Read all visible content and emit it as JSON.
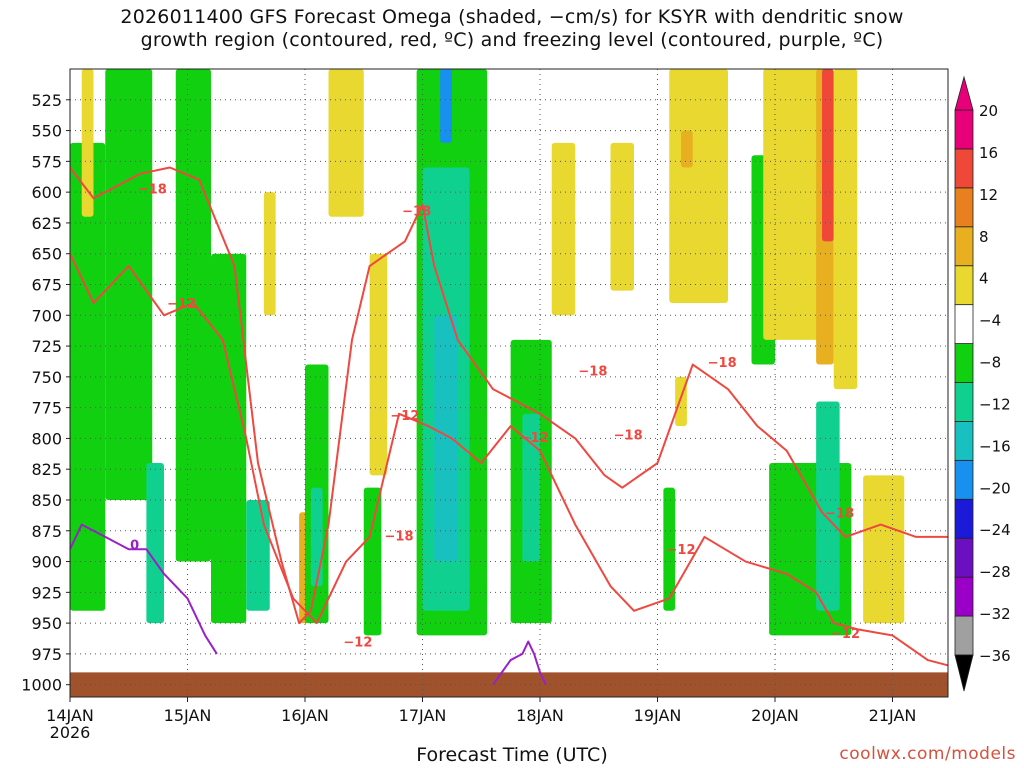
{
  "chart_data": {
    "type": "heatmap",
    "title_lines": [
      "2026011400 GFS Forecast Omega (shaded, −cm/s) for KSYR with dendritic snow",
      "growth region (contoured, red, ºC) and freezing level (contoured, purple, ºC)"
    ],
    "xlabel": "Forecast Time (UTC)",
    "x_ticks": [
      {
        "label": "14JAN",
        "sub": "2026",
        "day": 0
      },
      {
        "label": "15JAN",
        "day": 1
      },
      {
        "label": "16JAN",
        "day": 2
      },
      {
        "label": "17JAN",
        "day": 3
      },
      {
        "label": "18JAN",
        "day": 4
      },
      {
        "label": "19JAN",
        "day": 5
      },
      {
        "label": "20JAN",
        "day": 6
      },
      {
        "label": "21JAN",
        "day": 7
      }
    ],
    "xlim_days": [
      0,
      7.5
    ],
    "y_ticks": [
      525,
      550,
      575,
      600,
      625,
      650,
      675,
      700,
      725,
      750,
      775,
      800,
      825,
      850,
      875,
      900,
      925,
      950,
      975,
      1000
    ],
    "ylim_hpa": [
      500,
      1010
    ],
    "grid": true,
    "colorbar": {
      "levels": [
        -36,
        -32,
        -28,
        -24,
        -20,
        -16,
        -12,
        -8,
        -4,
        4,
        8,
        12,
        16,
        20
      ],
      "labels": [
        "20",
        "16",
        "12",
        "8",
        "4",
        "−4",
        "−8",
        "−12",
        "−16",
        "−20",
        "−24",
        "−28",
        "−32",
        "−36"
      ],
      "colors": [
        "#a0a0a0",
        "#9a00c8",
        "#6a10c0",
        "#1a1ad8",
        "#1890f0",
        "#18c0c0",
        "#10d090",
        "#10d010",
        "#ffffff",
        "#e8d830",
        "#e8b020",
        "#e88020",
        "#f04838",
        "#e8007a"
      ]
    },
    "omega_cells": [
      {
        "t0": 0.0,
        "t1": 0.25,
        "p0": 820,
        "p1": 930,
        "color": "#10d090"
      },
      {
        "t0": 0.0,
        "t1": 0.3,
        "p0": 560,
        "p1": 940,
        "color": "#10d010"
      },
      {
        "t0": 0.1,
        "t1": 0.2,
        "p0": 500,
        "p1": 620,
        "color": "#e8d830"
      },
      {
        "t0": 0.4,
        "t1": 0.6,
        "p0": 500,
        "p1": 600,
        "color": "#10d090"
      },
      {
        "t0": 0.45,
        "t1": 0.55,
        "p0": 510,
        "p1": 570,
        "color": "#1890f0"
      },
      {
        "t0": 0.3,
        "t1": 0.7,
        "p0": 500,
        "p1": 850,
        "color": "#10d010"
      },
      {
        "t0": 0.65,
        "t1": 0.8,
        "p0": 820,
        "p1": 950,
        "color": "#10d090"
      },
      {
        "t0": 0.9,
        "t1": 1.2,
        "p0": 500,
        "p1": 900,
        "color": "#10d010"
      },
      {
        "t0": 1.2,
        "t1": 1.5,
        "p0": 650,
        "p1": 950,
        "color": "#10d010"
      },
      {
        "t0": 1.5,
        "t1": 1.7,
        "p0": 850,
        "p1": 940,
        "color": "#10d090"
      },
      {
        "t0": 1.65,
        "t1": 1.75,
        "p0": 600,
        "p1": 700,
        "color": "#e8d830"
      },
      {
        "t0": 1.95,
        "t1": 2.05,
        "p0": 860,
        "p1": 950,
        "color": "#e8b020"
      },
      {
        "t0": 2.0,
        "t1": 2.2,
        "p0": 740,
        "p1": 950,
        "color": "#10d010"
      },
      {
        "t0": 2.05,
        "t1": 2.15,
        "p0": 840,
        "p1": 920,
        "color": "#10d090"
      },
      {
        "t0": 2.2,
        "t1": 2.5,
        "p0": 500,
        "p1": 620,
        "color": "#e8d830"
      },
      {
        "t0": 2.55,
        "t1": 2.7,
        "p0": 650,
        "p1": 830,
        "color": "#e8d830"
      },
      {
        "t0": 2.5,
        "t1": 2.65,
        "p0": 840,
        "p1": 960,
        "color": "#10d010"
      },
      {
        "t0": 2.95,
        "t1": 3.55,
        "p0": 500,
        "p1": 960,
        "color": "#10d010"
      },
      {
        "t0": 3.0,
        "t1": 3.4,
        "p0": 580,
        "p1": 940,
        "color": "#10d090"
      },
      {
        "t0": 3.1,
        "t1": 3.3,
        "p0": 700,
        "p1": 900,
        "color": "#18c0c0"
      },
      {
        "t0": 3.15,
        "t1": 3.25,
        "p0": 500,
        "p1": 560,
        "color": "#1890f0"
      },
      {
        "t0": 3.75,
        "t1": 4.1,
        "p0": 720,
        "p1": 950,
        "color": "#10d010"
      },
      {
        "t0": 3.85,
        "t1": 4.0,
        "p0": 780,
        "p1": 900,
        "color": "#10d090"
      },
      {
        "t0": 4.1,
        "t1": 4.3,
        "p0": 560,
        "p1": 700,
        "color": "#e8d830"
      },
      {
        "t0": 4.6,
        "t1": 4.8,
        "p0": 560,
        "p1": 680,
        "color": "#e8d830"
      },
      {
        "t0": 5.05,
        "t1": 5.15,
        "p0": 840,
        "p1": 940,
        "color": "#10d010"
      },
      {
        "t0": 5.1,
        "t1": 5.6,
        "p0": 500,
        "p1": 690,
        "color": "#e8d830"
      },
      {
        "t0": 5.2,
        "t1": 5.3,
        "p0": 550,
        "p1": 580,
        "color": "#e8b020"
      },
      {
        "t0": 5.15,
        "t1": 5.25,
        "p0": 750,
        "p1": 790,
        "color": "#e8d830"
      },
      {
        "t0": 5.8,
        "t1": 6.0,
        "p0": 570,
        "p1": 740,
        "color": "#10d010"
      },
      {
        "t0": 5.9,
        "t1": 6.4,
        "p0": 500,
        "p1": 720,
        "color": "#e8d830"
      },
      {
        "t0": 6.35,
        "t1": 6.5,
        "p0": 500,
        "p1": 740,
        "color": "#e8b020"
      },
      {
        "t0": 6.4,
        "t1": 6.5,
        "p0": 500,
        "p1": 640,
        "color": "#f04838"
      },
      {
        "t0": 6.5,
        "t1": 6.7,
        "p0": 500,
        "p1": 760,
        "color": "#e8d830"
      },
      {
        "t0": 5.95,
        "t1": 6.65,
        "p0": 820,
        "p1": 960,
        "color": "#10d010"
      },
      {
        "t0": 6.35,
        "t1": 6.55,
        "p0": 770,
        "p1": 940,
        "color": "#10d090"
      },
      {
        "t0": 6.75,
        "t1": 7.1,
        "p0": 830,
        "p1": 950,
        "color": "#e8d830"
      }
    ],
    "series": [
      {
        "name": "−18",
        "color": "#f04840",
        "x": [
          0.0,
          0.2,
          0.4,
          0.6,
          0.85,
          1.1,
          1.4,
          1.6,
          1.8,
          1.95,
          2.05,
          2.2,
          2.4,
          2.55,
          2.85,
          3.0,
          3.1,
          3.3,
          3.6,
          4.0,
          4.3,
          4.55,
          4.7,
          5.0,
          5.3,
          5.6,
          5.85,
          6.1,
          6.4,
          6.6,
          6.9,
          7.2,
          7.5
        ],
        "y": [
          580,
          605,
          595,
          585,
          580,
          590,
          660,
          820,
          900,
          950,
          940,
          870,
          720,
          660,
          640,
          610,
          660,
          720,
          760,
          780,
          800,
          830,
          840,
          820,
          740,
          760,
          790,
          810,
          860,
          880,
          870,
          880,
          880
        ],
        "labels": [
          {
            "x": 0.7,
            "y": 597
          },
          {
            "x": 2.8,
            "y": 879
          },
          {
            "x": 2.95,
            "y": 615
          },
          {
            "x": 4.45,
            "y": 745
          },
          {
            "x": 4.75,
            "y": 797
          },
          {
            "x": 5.55,
            "y": 738
          },
          {
            "x": 6.55,
            "y": 860
          }
        ]
      },
      {
        "name": "−12",
        "color": "#f04840",
        "x": [
          0.0,
          0.2,
          0.5,
          0.8,
          1.05,
          1.3,
          1.5,
          1.65,
          1.9,
          2.1,
          2.35,
          2.55,
          2.8,
          3.05,
          3.25,
          3.5,
          3.75,
          4.0,
          4.3,
          4.6,
          4.8,
          5.1,
          5.4,
          5.75,
          6.1,
          6.35,
          6.5,
          6.7,
          7.0,
          7.3,
          7.5
        ],
        "y": [
          650,
          690,
          660,
          700,
          690,
          720,
          800,
          870,
          930,
          950,
          900,
          880,
          780,
          790,
          800,
          820,
          790,
          810,
          870,
          920,
          940,
          930,
          880,
          900,
          910,
          925,
          950,
          955,
          960,
          980,
          985
        ],
        "labels": [
          {
            "x": 0.95,
            "y": 690
          },
          {
            "x": 2.45,
            "y": 965
          },
          {
            "x": 2.85,
            "y": 781
          },
          {
            "x": 3.95,
            "y": 799
          },
          {
            "x": 5.2,
            "y": 890
          },
          {
            "x": 6.6,
            "y": 958
          }
        ]
      },
      {
        "name": "0",
        "color": "#9a20c8",
        "x": [
          0.0,
          0.1,
          0.3,
          0.5,
          0.65,
          0.8,
          1.0,
          1.15,
          1.25
        ],
        "y": [
          890,
          870,
          880,
          890,
          890,
          910,
          930,
          960,
          975
        ],
        "labels": [
          {
            "x": 0.55,
            "y": 886
          }
        ]
      },
      {
        "name": "0",
        "color": "#9a20c8",
        "x": [
          3.6,
          3.75,
          3.85,
          3.9,
          3.95,
          4.0,
          4.05
        ],
        "y": [
          1000,
          980,
          975,
          965,
          975,
          990,
          1000
        ],
        "labels": []
      }
    ]
  },
  "credit": "coolwx.com/models"
}
